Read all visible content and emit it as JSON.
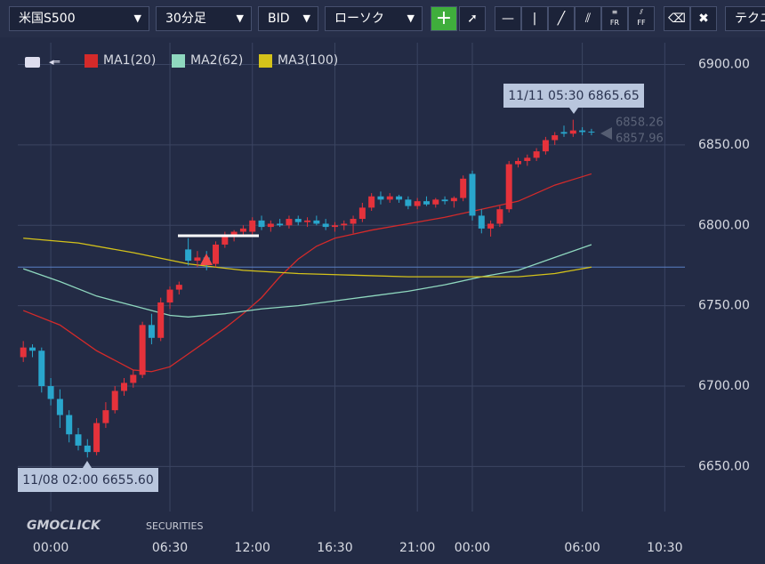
{
  "toolbar": {
    "symbol": "米国S500",
    "timeframe": "30分足",
    "side": "BID",
    "chart_style": "ローソク",
    "technical": "テクニ",
    "icon_labels": [
      "FR",
      "FF"
    ]
  },
  "logo": {
    "main": "GMOCLICK",
    "sub": "SECURITIES"
  },
  "chart_data": {
    "type": "candlestick",
    "open": [
      6718,
      6724,
      6722,
      6700,
      6692,
      6682,
      6670,
      6663,
      6659,
      6677,
      6685,
      6697,
      6702,
      6707,
      6738,
      6730,
      6752,
      6760,
      6785,
      6778,
      6780,
      6776,
      6788,
      6794,
      6796,
      6796,
      6803,
      6799,
      6801,
      6800,
      6804,
      6802,
      6803,
      6801,
      6799,
      6800,
      6801,
      6804,
      6811,
      6818,
      6816,
      6818,
      6816,
      6812,
      6815,
      6813,
      6816,
      6815,
      6817,
      6832,
      6806,
      6798,
      6801,
      6810,
      6838,
      6840,
      6842,
      6846,
      6853,
      6858,
      6857,
      6859,
      6858.26
    ],
    "high": [
      6728,
      6726,
      6724,
      6705,
      6698,
      6685,
      6674,
      6667,
      6680,
      6690,
      6700,
      6705,
      6710,
      6740,
      6745,
      6755,
      6762,
      6765,
      6792,
      6784,
      6784,
      6790,
      6796,
      6797,
      6800,
      6805,
      6806,
      6803,
      6804,
      6806,
      6806,
      6805,
      6806,
      6804,
      6802,
      6803,
      6806,
      6814,
      6820,
      6821,
      6820,
      6819,
      6818,
      6817,
      6818,
      6817,
      6818,
      6818,
      6831,
      6834,
      6810,
      6803,
      6812,
      6840,
      6842,
      6844,
      6848,
      6855,
      6858,
      6862,
      6865.65,
      6861,
      6860
    ],
    "low": [
      6715,
      6718,
      6696,
      6688,
      6674,
      6665,
      6660,
      6655.6,
      6657,
      6674,
      6683,
      6694,
      6699,
      6705,
      6726,
      6728,
      6748,
      6757,
      6775,
      6774,
      6772,
      6774,
      6786,
      6790,
      6793,
      6794,
      6797,
      6796,
      6799,
      6798,
      6800,
      6799,
      6800,
      6797,
      6796,
      6797,
      6795,
      6802,
      6809,
      6813,
      6814,
      6814,
      6810,
      6810,
      6812,
      6811,
      6813,
      6811,
      6815,
      6803,
      6795,
      6793,
      6799,
      6808,
      6836,
      6837,
      6840,
      6844,
      6850,
      6855,
      6855,
      6856,
      6856
    ],
    "close": [
      6724,
      6722,
      6700,
      6692,
      6682,
      6670,
      6663,
      6659,
      6677,
      6685,
      6697,
      6702,
      6707,
      6738,
      6730,
      6752,
      6760,
      6763,
      6778,
      6780,
      6776,
      6788,
      6794,
      6796,
      6798,
      6803,
      6799,
      6801,
      6800,
      6804,
      6802,
      6803,
      6801,
      6799,
      6800,
      6801,
      6804,
      6811,
      6818,
      6816,
      6818,
      6816,
      6812,
      6815,
      6813,
      6816,
      6815,
      6817,
      6829,
      6806,
      6798,
      6801,
      6810,
      6838,
      6840,
      6842,
      6846,
      6853,
      6856,
      6857,
      6859,
      6858,
      6857.96
    ],
    "up_color": "#e5323b",
    "down_color": "#29a6cc",
    "lines": [
      {
        "name": "MA1(20)",
        "color": "#d42a2a",
        "x": [
          0,
          4,
          8,
          12,
          14,
          16,
          18,
          20,
          22,
          24,
          26,
          28,
          30,
          32,
          34,
          38,
          42,
          46,
          50,
          54,
          58,
          62
        ],
        "values": [
          6747,
          6738,
          6722,
          6710,
          6709,
          6712,
          6720,
          6728,
          6736,
          6745,
          6755,
          6768,
          6779,
          6787,
          6792,
          6797,
          6801,
          6805,
          6810,
          6815,
          6825,
          6832
        ]
      },
      {
        "name": "MA2(62)",
        "color": "#8fd8bf",
        "x": [
          0,
          4,
          8,
          12,
          16,
          18,
          22,
          26,
          30,
          34,
          38,
          42,
          46,
          50,
          54,
          58,
          62
        ],
        "values": [
          6773,
          6765,
          6756,
          6750,
          6744,
          6743,
          6745,
          6748,
          6750,
          6753,
          6756,
          6759,
          6763,
          6768,
          6772,
          6780,
          6788
        ]
      },
      {
        "name": "MA3(100)",
        "color": "#d4c21a",
        "x": [
          0,
          6,
          12,
          18,
          24,
          30,
          36,
          42,
          48,
          54,
          58,
          62
        ],
        "values": [
          6792,
          6789,
          6783,
          6776,
          6772,
          6770,
          6769,
          6768,
          6768,
          6768,
          6770,
          6774
        ]
      }
    ],
    "price_line": 6774,
    "xlim": [
      -0.6,
      72.2
    ],
    "ylim": [
      6622,
      6918
    ],
    "xticks": [
      {
        "value": 3,
        "label": "00:00"
      },
      {
        "value": 16,
        "label": "06:30"
      },
      {
        "value": 25,
        "label": "12:00"
      },
      {
        "value": 34,
        "label": "16:30"
      },
      {
        "value": 43,
        "label": "21:00"
      },
      {
        "value": 49,
        "label": "00:00"
      },
      {
        "value": 61,
        "label": "06:00"
      },
      {
        "value": 70,
        "label": "10:30"
      }
    ],
    "yticks": [
      {
        "value": 6650,
        "label": "6650.00"
      },
      {
        "value": 6700,
        "label": "6700.00"
      },
      {
        "value": 6750,
        "label": "6750.00"
      },
      {
        "value": 6800,
        "label": "6800.00"
      },
      {
        "value": 6850,
        "label": "6850.00"
      },
      {
        "value": 6900,
        "label": "6900.00"
      }
    ],
    "annotations": [
      "11/11 05:30 6865.65",
      "11/08 02:00 6655.60"
    ],
    "last_prices": [
      6858.26,
      6857.96
    ],
    "grid": true
  }
}
